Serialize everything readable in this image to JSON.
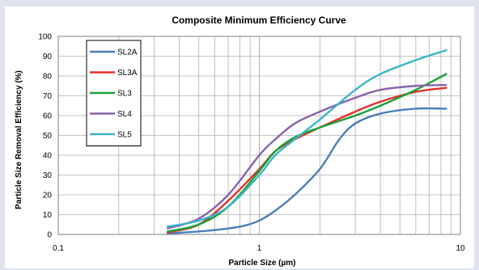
{
  "chart_data": {
    "type": "line",
    "title": "Composite Minimum Efficiency Curve",
    "xlabel": "Particle Size (µm)",
    "ylabel": "Particle Size Removal Efficiency (%)",
    "x_scale": "log",
    "xlim": [
      0.1,
      10
    ],
    "ylim": [
      0,
      100
    ],
    "x_ticks": [
      {
        "value": 0.1,
        "label": "0.1"
      },
      {
        "value": 1,
        "label": "1"
      },
      {
        "value": 10,
        "label": "10"
      }
    ],
    "y_ticks": [
      {
        "value": 0,
        "label": "0"
      },
      {
        "value": 10,
        "label": "10"
      },
      {
        "value": 20,
        "label": "20"
      },
      {
        "value": 30,
        "label": "30"
      },
      {
        "value": 40,
        "label": "40"
      },
      {
        "value": 50,
        "label": "50"
      },
      {
        "value": 60,
        "label": "60"
      },
      {
        "value": 70,
        "label": "70"
      },
      {
        "value": 80,
        "label": "80"
      },
      {
        "value": 90,
        "label": "90"
      },
      {
        "value": 100,
        "label": "100"
      }
    ],
    "grid": true,
    "legend_position": "top-left",
    "series": [
      {
        "name": "SL2A",
        "color": "#4a7ebb",
        "x": [
          0.35,
          0.5,
          0.7,
          0.85,
          1.0,
          1.2,
          1.5,
          2.0,
          2.5,
          3.0,
          4.0,
          6.0,
          8.5
        ],
        "y": [
          0.5,
          1.5,
          3,
          4.5,
          7,
          12,
          20,
          33,
          48,
          56,
          61,
          63.5,
          63.5
        ]
      },
      {
        "name": "SL3A",
        "color": "#e3302b",
        "x": [
          0.35,
          0.5,
          0.7,
          1.0,
          1.2,
          1.5,
          2.0,
          3.0,
          4.0,
          6.0,
          8.5
        ],
        "y": [
          1,
          5,
          17,
          33,
          42,
          48,
          54,
          62,
          67,
          72,
          74
        ]
      },
      {
        "name": "SL3",
        "color": "#1aa13a",
        "x": [
          0.35,
          0.5,
          0.7,
          1.0,
          1.2,
          1.5,
          2.0,
          3.0,
          4.0,
          6.0,
          8.5
        ],
        "y": [
          1.5,
          5,
          14,
          32,
          42,
          49,
          54,
          60,
          65,
          73,
          81
        ]
      },
      {
        "name": "SL4",
        "color": "#8a63ad",
        "x": [
          0.35,
          0.5,
          0.7,
          1.0,
          1.2,
          1.5,
          2.0,
          3.0,
          4.0,
          6.0,
          8.5
        ],
        "y": [
          3,
          8,
          20,
          40,
          48,
          56,
          62,
          69,
          73,
          75,
          75.5
        ]
      },
      {
        "name": "SL5",
        "color": "#3cb5c9",
        "x": [
          0.35,
          0.5,
          0.7,
          1.0,
          1.2,
          1.5,
          2.0,
          3.0,
          4.0,
          6.0,
          8.5
        ],
        "y": [
          4,
          7,
          14,
          30,
          40,
          48,
          58,
          73,
          81,
          88,
          93
        ]
      }
    ]
  }
}
